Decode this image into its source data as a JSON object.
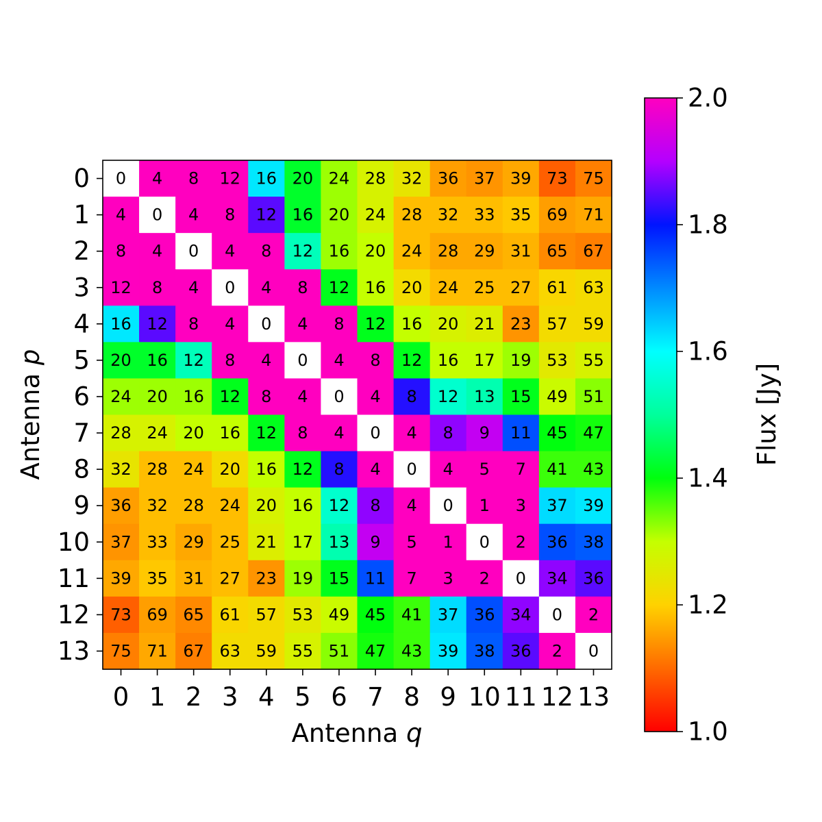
{
  "chart_data": {
    "type": "heatmap",
    "title": "",
    "xlabel": "Antenna q",
    "ylabel": "Antenna p",
    "x_categories": [
      "0",
      "1",
      "2",
      "3",
      "4",
      "5",
      "6",
      "7",
      "8",
      "9",
      "10",
      "11",
      "12",
      "13"
    ],
    "y_categories": [
      "0",
      "1",
      "2",
      "3",
      "4",
      "5",
      "6",
      "7",
      "8",
      "9",
      "10",
      "11",
      "12",
      "13"
    ],
    "cell_labels": [
      [
        0,
        4,
        8,
        12,
        16,
        20,
        24,
        28,
        32,
        36,
        37,
        39,
        73,
        75
      ],
      [
        4,
        0,
        4,
        8,
        12,
        16,
        20,
        24,
        28,
        32,
        33,
        35,
        69,
        71
      ],
      [
        8,
        4,
        0,
        4,
        8,
        12,
        16,
        20,
        24,
        28,
        29,
        31,
        65,
        67
      ],
      [
        12,
        8,
        4,
        0,
        4,
        8,
        12,
        16,
        20,
        24,
        25,
        27,
        61,
        63
      ],
      [
        16,
        12,
        8,
        4,
        0,
        4,
        8,
        12,
        16,
        20,
        21,
        23,
        57,
        59
      ],
      [
        20,
        16,
        12,
        8,
        4,
        0,
        4,
        8,
        12,
        16,
        17,
        19,
        53,
        55
      ],
      [
        24,
        20,
        16,
        12,
        8,
        4,
        0,
        4,
        8,
        12,
        13,
        15,
        49,
        51
      ],
      [
        28,
        24,
        20,
        16,
        12,
        8,
        4,
        0,
        4,
        8,
        9,
        11,
        45,
        47
      ],
      [
        32,
        28,
        24,
        20,
        16,
        12,
        8,
        4,
        0,
        4,
        5,
        7,
        41,
        43
      ],
      [
        36,
        32,
        28,
        24,
        20,
        16,
        12,
        8,
        4,
        0,
        1,
        3,
        37,
        39
      ],
      [
        37,
        33,
        29,
        25,
        21,
        17,
        13,
        9,
        5,
        1,
        0,
        2,
        36,
        38
      ],
      [
        39,
        35,
        31,
        27,
        23,
        19,
        15,
        11,
        7,
        3,
        2,
        0,
        34,
        36
      ],
      [
        73,
        69,
        65,
        61,
        57,
        53,
        49,
        45,
        41,
        37,
        36,
        34,
        0,
        2
      ],
      [
        75,
        71,
        67,
        63,
        59,
        55,
        51,
        47,
        43,
        39,
        38,
        36,
        2,
        0
      ]
    ],
    "flux_values": [
      [
        null,
        2.0,
        2.0,
        2.0,
        1.62,
        1.42,
        1.32,
        1.27,
        1.24,
        1.15,
        1.14,
        1.16,
        1.09,
        1.12
      ],
      [
        2.0,
        null,
        2.0,
        2.0,
        1.85,
        1.42,
        1.32,
        1.27,
        1.18,
        1.18,
        1.18,
        1.19,
        1.15,
        1.16
      ],
      [
        2.0,
        2.0,
        null,
        2.0,
        2.0,
        1.53,
        1.32,
        1.3,
        1.18,
        1.16,
        1.16,
        1.17,
        1.13,
        1.12
      ],
      [
        2.0,
        2.0,
        2.0,
        null,
        2.0,
        2.0,
        1.41,
        1.3,
        1.22,
        1.18,
        1.18,
        1.18,
        1.21,
        1.22
      ],
      [
        1.62,
        1.85,
        2.0,
        2.0,
        null,
        2.0,
        2.0,
        1.41,
        1.3,
        1.27,
        1.26,
        1.14,
        1.22,
        1.22
      ],
      [
        1.42,
        1.42,
        1.53,
        2.0,
        2.0,
        null,
        2.0,
        2.0,
        1.41,
        1.3,
        1.3,
        1.32,
        1.25,
        1.27
      ],
      [
        1.32,
        1.32,
        1.32,
        1.41,
        2.0,
        2.0,
        null,
        2.0,
        1.82,
        1.55,
        1.52,
        1.41,
        1.29,
        1.33
      ],
      [
        1.27,
        1.27,
        1.3,
        1.3,
        1.41,
        2.0,
        2.0,
        null,
        2.0,
        1.88,
        1.92,
        1.75,
        1.4,
        1.39
      ],
      [
        1.24,
        1.18,
        1.18,
        1.22,
        1.3,
        1.41,
        1.82,
        2.0,
        null,
        2.0,
        2.0,
        2.0,
        1.37,
        1.37
      ],
      [
        1.15,
        1.18,
        1.18,
        1.18,
        1.27,
        1.3,
        1.55,
        1.88,
        2.0,
        null,
        2.0,
        2.0,
        1.63,
        1.62
      ],
      [
        1.14,
        1.18,
        1.16,
        1.18,
        1.26,
        1.3,
        1.52,
        1.92,
        2.0,
        2.0,
        null,
        2.0,
        1.75,
        1.74
      ],
      [
        1.16,
        1.19,
        1.17,
        1.18,
        1.14,
        1.32,
        1.41,
        1.75,
        2.0,
        2.0,
        2.0,
        null,
        1.88,
        1.85
      ],
      [
        1.09,
        1.15,
        1.13,
        1.21,
        1.22,
        1.25,
        1.29,
        1.4,
        1.37,
        1.63,
        1.75,
        1.88,
        null,
        2.0
      ],
      [
        1.12,
        1.16,
        1.12,
        1.22,
        1.22,
        1.27,
        1.33,
        1.39,
        1.37,
        1.62,
        1.74,
        1.85,
        2.0,
        null
      ]
    ],
    "diagonal_color": "#ffffff",
    "colormap": "gist_rainbow",
    "colorbar": {
      "label": "Flux [Jy]",
      "min": 1.0,
      "max": 2.0,
      "ticks": [
        "1.0",
        "1.2",
        "1.4",
        "1.6",
        "1.8",
        "2.0"
      ],
      "placement": "right"
    }
  }
}
